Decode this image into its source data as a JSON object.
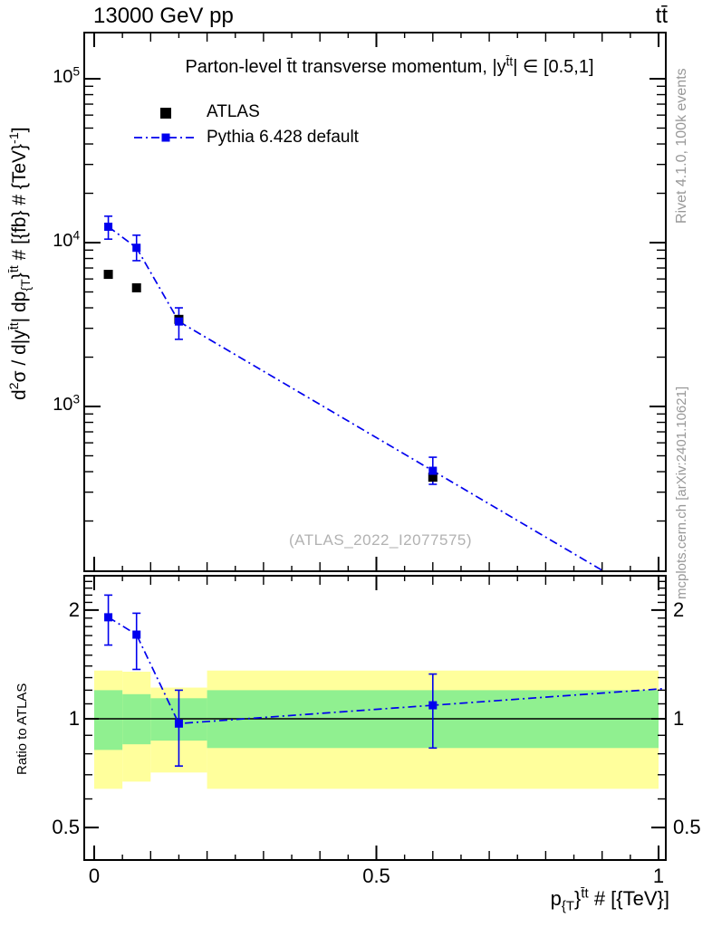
{
  "header": {
    "left": "13000 GeV pp",
    "right": "tt̄"
  },
  "side_notes": {
    "top": "Rivet 4.1.0,  100k events",
    "bottom": "mcplots.cern.ch [arXiv:2401.10621]"
  },
  "watermark": "(ATLAS_2022_I2077575)",
  "legend": {
    "atlas": "ATLAS",
    "mc": "Pythia 6.428 default"
  },
  "chart_data": {
    "type": "line",
    "title_html": "Parton-level t̄t transverse momentum, |y<sup>t̄t</sup>| ∈ [0.5,1]",
    "xlabel_html": "p<sub>{T</sub>}<sup>t̄t</sup> # [{TeV}]",
    "ylabel_html": "d<sup>2</sup>σ / d|y<sup>t̄t</sup>| dp<sub>{T</sub>}<sup>t̄t</sup> # [{fb} # {TeV}<sup>-1</sup>]",
    "ratio_ylabel": "Ratio to ATLAS",
    "colors": {
      "mc": "#0000ee",
      "data": "#000000",
      "band_outer": "#ffff9c",
      "band_inner": "#90f090"
    },
    "x_values": [
      0.025,
      0.075,
      0.15,
      0.6
    ],
    "bin_edges": [
      0,
      0.05,
      0.1,
      0.2,
      1.0
    ],
    "main_panel": {
      "ylog": true,
      "ylim": [
        100,
        191000
      ],
      "xlim": [
        -0.018,
        1.013
      ],
      "y_ticks": [
        {
          "v": 1000,
          "html": "10<sup>3</sup>"
        },
        {
          "v": 10000,
          "html": "10<sup>4</sup>"
        },
        {
          "v": 100000,
          "html": "10<sup>5</sup>"
        }
      ],
      "series": [
        {
          "name": "ATLAS",
          "marker": "square",
          "size": 10,
          "values": [
            6400,
            5300,
            3400,
            370
          ]
        },
        {
          "name": "Pythia 6.428 default",
          "marker": "square",
          "size": 9,
          "linestyle": "dashdot",
          "values": [
            12500,
            9300,
            3300,
            405
          ],
          "err_lo": [
            10500,
            7760,
            2570,
            335
          ],
          "err_hi": [
            14500,
            11100,
            4000,
            490
          ]
        }
      ]
    },
    "ratio_panel": {
      "ylog": true,
      "ylim": [
        0.41,
        2.49
      ],
      "refline": 1,
      "y_ticks": [
        {
          "v": 0.5,
          "label": "0.5"
        },
        {
          "v": 1,
          "label": "1"
        },
        {
          "v": 2,
          "label": "2"
        }
      ],
      "values": [
        1.91,
        1.71,
        0.97,
        1.09
      ],
      "err_lo": [
        1.6,
        1.37,
        0.74,
        0.83
      ],
      "err_hi": [
        2.2,
        1.96,
        1.2,
        1.33
      ],
      "bands": {
        "outer": {
          "lo": [
            0.64,
            0.67,
            0.71,
            0.64
          ],
          "hi": [
            1.36,
            1.35,
            1.22,
            1.36
          ]
        },
        "inner": {
          "lo": [
            0.82,
            0.85,
            0.87,
            0.83
          ],
          "hi": [
            1.2,
            1.17,
            1.14,
            1.2
          ]
        }
      }
    },
    "x_ticks": [
      {
        "v": 0,
        "label": "0"
      },
      {
        "v": 0.5,
        "label": "0.5"
      },
      {
        "v": 1,
        "label": "1"
      }
    ]
  }
}
